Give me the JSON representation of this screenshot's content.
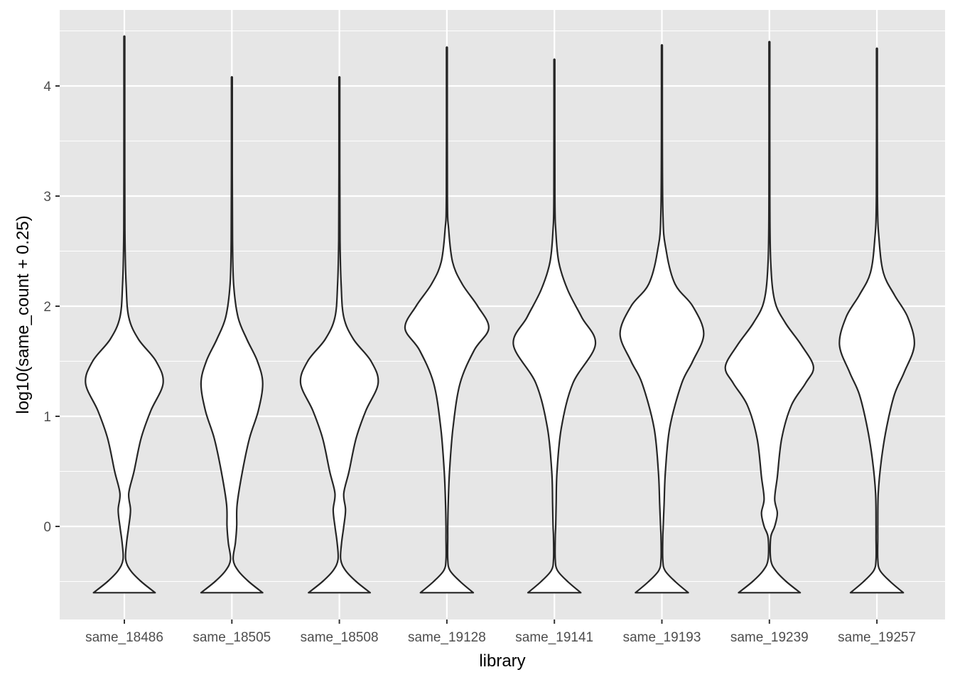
{
  "chart_data": {
    "type": "violin",
    "title": "",
    "xlabel": "library",
    "ylabel": "log10(same_count + 0.25)",
    "ylim": [
      -0.85,
      4.75
    ],
    "y_ticks": [
      0,
      1,
      2,
      3,
      4
    ],
    "grid": true,
    "colors": {
      "panel": "#e6e6e6",
      "grid": "#ffffff",
      "violin_fill": "#ffffff",
      "violin_stroke": "#262626"
    },
    "categories": [
      "same_18486",
      "same_18505",
      "same_18508",
      "same_19128",
      "same_19141",
      "same_19193",
      "same_19239",
      "same_19257"
    ],
    "series": [
      {
        "category": "same_18486",
        "min": -0.602,
        "max": 4.45,
        "profile": [
          [
            -0.602,
            0.7
          ],
          [
            -0.5,
            0.38
          ],
          [
            -0.4,
            0.14
          ],
          [
            -0.3,
            0.03
          ],
          [
            -0.15,
            0.05
          ],
          [
            0,
            0.1
          ],
          [
            0.15,
            0.14
          ],
          [
            0.3,
            0.1
          ],
          [
            0.5,
            0.22
          ],
          [
            0.8,
            0.38
          ],
          [
            1.05,
            0.6
          ],
          [
            1.3,
            0.88
          ],
          [
            1.5,
            0.72
          ],
          [
            1.7,
            0.32
          ],
          [
            1.9,
            0.1
          ],
          [
            2.2,
            0.04
          ],
          [
            2.6,
            0.015
          ],
          [
            3.2,
            0.006
          ],
          [
            4.45,
            0.004
          ]
        ]
      },
      {
        "category": "same_18505",
        "min": -0.602,
        "max": 4.08,
        "profile": [
          [
            -0.602,
            0.7
          ],
          [
            -0.5,
            0.38
          ],
          [
            -0.4,
            0.14
          ],
          [
            -0.3,
            0.03
          ],
          [
            -0.15,
            0.08
          ],
          [
            0,
            0.11
          ],
          [
            0.2,
            0.12
          ],
          [
            0.5,
            0.24
          ],
          [
            0.8,
            0.4
          ],
          [
            1.05,
            0.6
          ],
          [
            1.3,
            0.7
          ],
          [
            1.5,
            0.58
          ],
          [
            1.7,
            0.34
          ],
          [
            1.9,
            0.14
          ],
          [
            2.2,
            0.04
          ],
          [
            2.6,
            0.015
          ],
          [
            3.2,
            0.006
          ],
          [
            4.08,
            0.004
          ]
        ]
      },
      {
        "category": "same_18508",
        "min": -0.602,
        "max": 4.08,
        "profile": [
          [
            -0.602,
            0.7
          ],
          [
            -0.5,
            0.38
          ],
          [
            -0.4,
            0.14
          ],
          [
            -0.3,
            0.03
          ],
          [
            -0.15,
            0.05
          ],
          [
            0,
            0.1
          ],
          [
            0.15,
            0.14
          ],
          [
            0.3,
            0.1
          ],
          [
            0.5,
            0.22
          ],
          [
            0.8,
            0.38
          ],
          [
            1.05,
            0.6
          ],
          [
            1.3,
            0.88
          ],
          [
            1.5,
            0.72
          ],
          [
            1.7,
            0.32
          ],
          [
            1.9,
            0.1
          ],
          [
            2.2,
            0.04
          ],
          [
            2.6,
            0.015
          ],
          [
            3.2,
            0.006
          ],
          [
            4.08,
            0.004
          ]
        ]
      },
      {
        "category": "same_19128",
        "min": -0.602,
        "max": 4.35,
        "profile": [
          [
            -0.602,
            0.6
          ],
          [
            -0.5,
            0.3
          ],
          [
            -0.4,
            0.07
          ],
          [
            -0.3,
            0.02
          ],
          [
            -0.1,
            0.02
          ],
          [
            0,
            0.02
          ],
          [
            0.2,
            0.03
          ],
          [
            0.5,
            0.06
          ],
          [
            0.9,
            0.14
          ],
          [
            1.3,
            0.3
          ],
          [
            1.6,
            0.62
          ],
          [
            1.8,
            0.95
          ],
          [
            2.0,
            0.7
          ],
          [
            2.2,
            0.35
          ],
          [
            2.4,
            0.13
          ],
          [
            2.7,
            0.04
          ],
          [
            3.0,
            0.012
          ],
          [
            4.35,
            0.004
          ]
        ]
      },
      {
        "category": "same_19141",
        "min": -0.602,
        "max": 4.24,
        "profile": [
          [
            -0.602,
            0.6
          ],
          [
            -0.5,
            0.3
          ],
          [
            -0.4,
            0.07
          ],
          [
            -0.3,
            0.02
          ],
          [
            -0.1,
            0.02
          ],
          [
            0,
            0.03
          ],
          [
            0.2,
            0.04
          ],
          [
            0.5,
            0.06
          ],
          [
            0.9,
            0.16
          ],
          [
            1.3,
            0.42
          ],
          [
            1.65,
            0.93
          ],
          [
            1.9,
            0.62
          ],
          [
            2.15,
            0.3
          ],
          [
            2.4,
            0.1
          ],
          [
            2.7,
            0.03
          ],
          [
            3.0,
            0.012
          ],
          [
            4.24,
            0.004
          ]
        ]
      },
      {
        "category": "same_19193",
        "min": -0.602,
        "max": 4.37,
        "profile": [
          [
            -0.602,
            0.6
          ],
          [
            -0.5,
            0.3
          ],
          [
            -0.4,
            0.07
          ],
          [
            -0.3,
            0.02
          ],
          [
            -0.1,
            0.02
          ],
          [
            0,
            0.03
          ],
          [
            0.2,
            0.05
          ],
          [
            0.5,
            0.08
          ],
          [
            0.9,
            0.18
          ],
          [
            1.3,
            0.45
          ],
          [
            1.5,
            0.7
          ],
          [
            1.75,
            0.95
          ],
          [
            2.0,
            0.7
          ],
          [
            2.2,
            0.3
          ],
          [
            2.5,
            0.1
          ],
          [
            2.9,
            0.02
          ],
          [
            4.37,
            0.004
          ]
        ]
      },
      {
        "category": "same_19239",
        "min": -0.602,
        "max": 4.4,
        "profile": [
          [
            -0.602,
            0.7
          ],
          [
            -0.5,
            0.38
          ],
          [
            -0.4,
            0.14
          ],
          [
            -0.3,
            0.03
          ],
          [
            -0.1,
            0.03
          ],
          [
            0,
            0.12
          ],
          [
            0.12,
            0.18
          ],
          [
            0.25,
            0.12
          ],
          [
            0.45,
            0.18
          ],
          [
            0.8,
            0.28
          ],
          [
            1.1,
            0.5
          ],
          [
            1.3,
            0.82
          ],
          [
            1.45,
            1.0
          ],
          [
            1.65,
            0.72
          ],
          [
            1.85,
            0.36
          ],
          [
            2.05,
            0.12
          ],
          [
            2.4,
            0.03
          ],
          [
            3.0,
            0.01
          ],
          [
            4.4,
            0.004
          ]
        ]
      },
      {
        "category": "same_19257",
        "min": -0.602,
        "max": 4.34,
        "profile": [
          [
            -0.602,
            0.6
          ],
          [
            -0.5,
            0.3
          ],
          [
            -0.4,
            0.07
          ],
          [
            -0.3,
            0.02
          ],
          [
            -0.1,
            0.02
          ],
          [
            0,
            0.02
          ],
          [
            0.3,
            0.03
          ],
          [
            0.6,
            0.1
          ],
          [
            0.9,
            0.22
          ],
          [
            1.2,
            0.4
          ],
          [
            1.4,
            0.62
          ],
          [
            1.65,
            0.85
          ],
          [
            1.9,
            0.7
          ],
          [
            2.1,
            0.4
          ],
          [
            2.3,
            0.15
          ],
          [
            2.6,
            0.05
          ],
          [
            3.0,
            0.012
          ],
          [
            4.34,
            0.004
          ]
        ]
      }
    ]
  }
}
